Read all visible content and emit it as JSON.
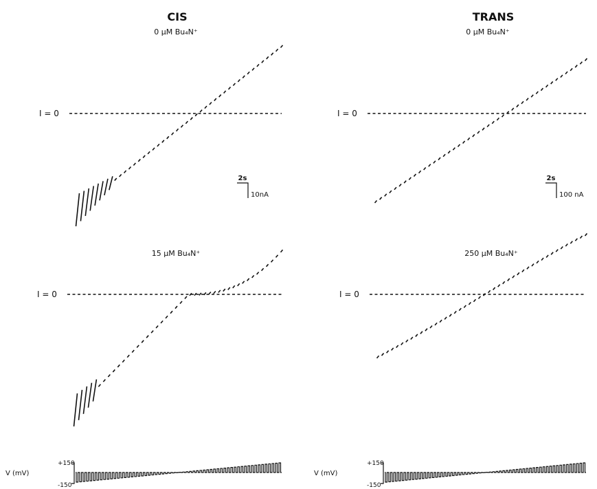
{
  "chart_data": [
    {
      "type": "line",
      "column": "CIS",
      "label": "0 μM Bu₄N⁺",
      "zero_label": "I = 0",
      "scale": {
        "time": "2s",
        "current": "10nA"
      },
      "voltage_steps_mV": {
        "start": -150,
        "end": 150
      },
      "trace_relative_to_zero": {
        "start": -1.12,
        "end": 0.78
      },
      "long_pulses": 8
    },
    {
      "type": "line",
      "column": "TRANS",
      "label": "0 μM Bu₄N⁺",
      "zero_label": "I = 0",
      "scale": {
        "time": "2s",
        "current": "100 nA"
      },
      "voltage_steps_mV": {
        "start": -150,
        "end": 150
      },
      "trace_relative_to_zero": {
        "start": -0.95,
        "end": 0.58
      },
      "long_pulses": 0
    },
    {
      "type": "line",
      "column": "CIS",
      "label": "15 μM Bu₄N⁺",
      "zero_label": "I = 0",
      "voltage_steps_mV": {
        "start": -150,
        "end": 150
      },
      "trace_relative_to_zero": {
        "start": -1.2,
        "end": 0.45
      },
      "long_pulses": 5
    },
    {
      "type": "line",
      "column": "TRANS",
      "label": "250 μM Bu₄N⁺",
      "zero_label": "I = 0",
      "voltage_steps_mV": {
        "start": -150,
        "end": 150
      },
      "trace_relative_to_zero": {
        "start": -0.65,
        "end": 0.62
      },
      "long_pulses": 0
    }
  ],
  "headers": {
    "cis": "CIS",
    "trans": "TRANS"
  },
  "voltage_protocol": {
    "label": "V (mV)",
    "top": "+150",
    "bottom": "-150"
  }
}
